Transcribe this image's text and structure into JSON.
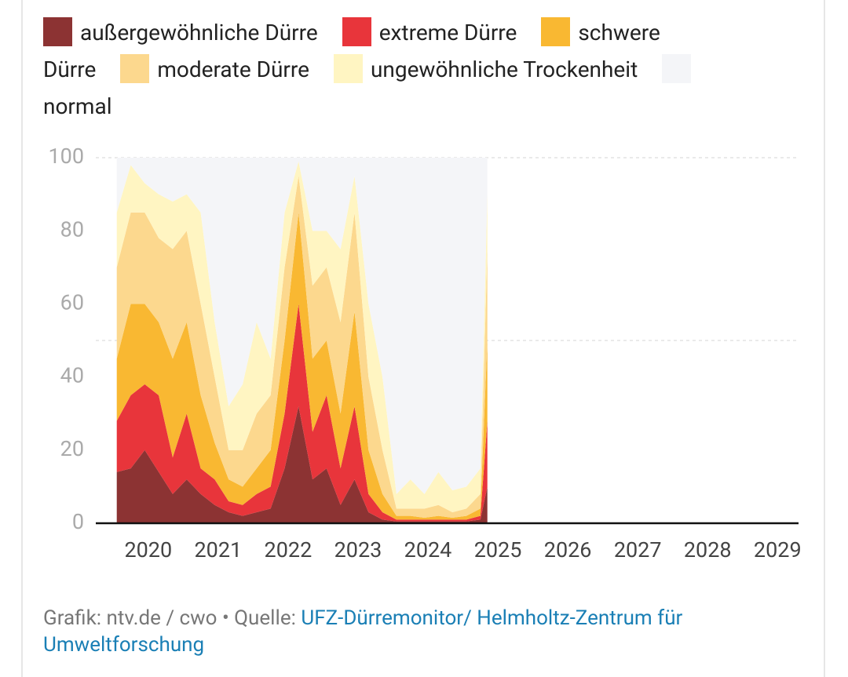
{
  "chart_data": {
    "type": "stacked-area",
    "x": [
      2019.55,
      2019.75,
      2019.95,
      2020.15,
      2020.35,
      2020.55,
      2020.75,
      2020.95,
      2021.15,
      2021.35,
      2021.55,
      2021.75,
      2021.95,
      2022.15,
      2022.35,
      2022.55,
      2022.75,
      2022.95,
      2023.15,
      2023.35,
      2023.55,
      2023.75,
      2023.95,
      2024.15,
      2024.35,
      2024.55,
      2024.75,
      2024.85
    ],
    "series": [
      {
        "name": "außergewöhnliche Dürre",
        "color": "#8c3333",
        "values": [
          14,
          15,
          20,
          14,
          8,
          12,
          8,
          5,
          3,
          2,
          3,
          4,
          15,
          32,
          12,
          15,
          5,
          12,
          3,
          1,
          0.5,
          0.5,
          0.5,
          0.5,
          0.5,
          0.5,
          1,
          10
        ]
      },
      {
        "name": "extreme Dürre",
        "color": "#e8353b",
        "values": [
          14,
          20,
          18,
          21,
          10,
          18,
          7,
          7,
          3,
          3,
          5,
          6,
          15,
          28,
          13,
          20,
          10,
          20,
          5,
          2,
          0.5,
          0.5,
          0.5,
          0.5,
          0.5,
          0.5,
          1,
          18
        ]
      },
      {
        "name": "schwere Dürre",
        "color": "#f9b832",
        "values": [
          17,
          25,
          22,
          20,
          27,
          25,
          20,
          10,
          6,
          5,
          7,
          10,
          20,
          25,
          20,
          15,
          15,
          26,
          12,
          5,
          1,
          1,
          0.5,
          1,
          0.5,
          1,
          2,
          22
        ]
      },
      {
        "name": "moderate Dürre",
        "color": "#fcd88e",
        "values": [
          25,
          25,
          25,
          23,
          30,
          25,
          25,
          18,
          8,
          10,
          15,
          15,
          20,
          10,
          20,
          20,
          25,
          27,
          20,
          12,
          2,
          2,
          2.5,
          3,
          1.5,
          2,
          4,
          25
        ]
      },
      {
        "name": "ungewöhnliche Trockenheit",
        "color": "#fff5c2",
        "values": [
          15,
          13,
          8,
          12,
          13,
          10,
          25,
          15,
          12,
          18,
          25,
          10,
          15,
          4,
          15,
          10,
          20,
          10,
          20,
          20,
          4,
          8,
          4,
          9,
          6,
          6,
          7,
          15
        ]
      },
      {
        "name": "normal",
        "color": "#f4f5f8",
        "values": [
          15,
          2,
          7,
          10,
          12,
          10,
          15,
          45,
          68,
          62,
          45,
          55,
          15,
          1,
          20,
          20,
          25,
          5,
          40,
          60,
          92,
          88,
          92,
          86,
          91,
          90,
          85,
          10
        ]
      }
    ],
    "xlim": [
      2019.25,
      2029.3
    ],
    "xticks": [
      2020,
      2021,
      2022,
      2023,
      2024,
      2025,
      2026,
      2027,
      2028,
      2029
    ],
    "ylim": [
      0,
      100
    ],
    "yticks": [
      0,
      20,
      40,
      60,
      80,
      100
    ],
    "grid_lines": [
      50,
      100
    ],
    "source_prefix": "Grafik: ntv.de / cwo • Quelle: ",
    "source_link": "UFZ-Dürremonitor/ Helmholtz-Zentrum für Umweltforschung"
  }
}
